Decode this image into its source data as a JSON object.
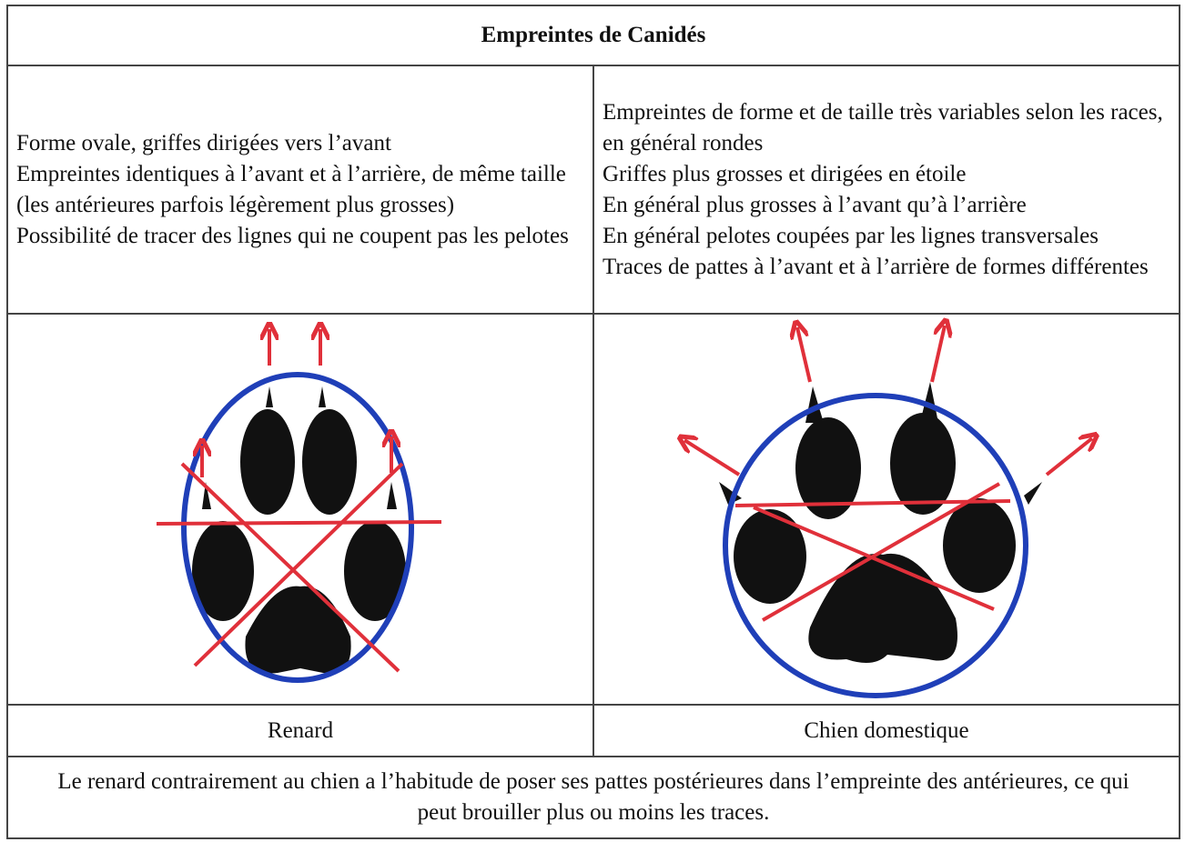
{
  "table": {
    "title": "Empreintes de Canidés",
    "descriptions": [
      [
        "Forme ovale, griffes dirigées vers l’avant",
        "Empreintes identiques à l’avant et à l’arrière, de même taille (les antérieures parfois légèrement plus grosses)",
        "Possibilité de tracer des lignes qui ne coupent pas les pelotes"
      ],
      [
        "Empreintes de forme et de taille très variables selon les races, en général rondes",
        "Griffes plus grosses et dirigées en étoile",
        "En général plus grosses à l’avant qu’à l’arrière",
        "En général pelotes coupées par les lignes transversales",
        "Traces de pattes à l’avant et à l’arrière de formes différentes"
      ]
    ],
    "labels": [
      "Renard",
      "Chien domestique"
    ],
    "note": "Le renard contrairement au chien a l’habitude de poser ses pattes postérieures dans l’empreinte des antérieures, ce qui peut brouiller plus ou moins les traces."
  }
}
